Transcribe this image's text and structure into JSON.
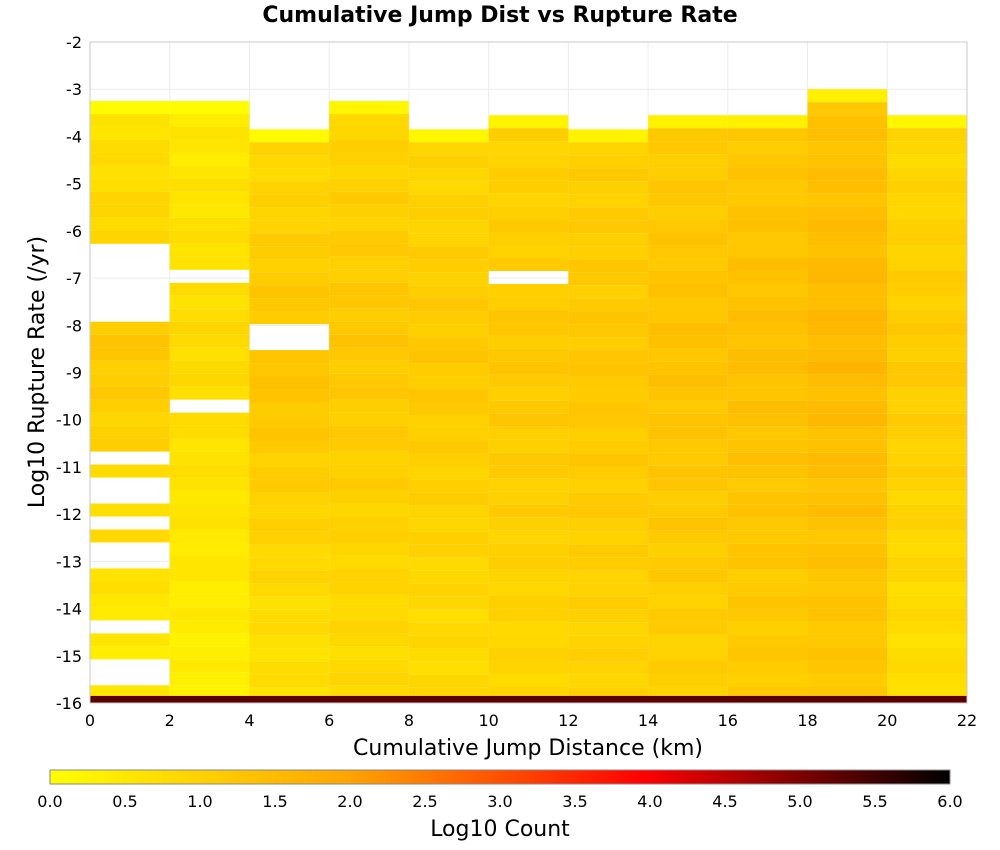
{
  "chart_data": {
    "type": "heatmap",
    "title": "Cumulative Jump Dist vs Rupture Rate",
    "xlabel": "Cumulative Jump Distance (km)",
    "ylabel": "Log10 Rupture Rate (/yr)",
    "xlim": [
      0,
      22
    ],
    "ylim": [
      -16,
      -2
    ],
    "x_ticks": [
      "0",
      "2",
      "4",
      "6",
      "8",
      "10",
      "12",
      "14",
      "16",
      "18",
      "20",
      "22"
    ],
    "y_ticks": [
      "-2",
      "-3",
      "-4",
      "-5",
      "-6",
      "-7",
      "-8",
      "-9",
      "-10",
      "-11",
      "-12",
      "-13",
      "-14",
      "-15",
      "-16"
    ],
    "x_bin_width": 2,
    "y_bin_height": 0.275,
    "grid": true,
    "colorbar": {
      "label": "Log10 Count",
      "min": 0.0,
      "max": 6.0,
      "ticks": [
        "0.0",
        "0.5",
        "1.0",
        "1.5",
        "2.0",
        "2.5",
        "3.0",
        "3.5",
        "4.0",
        "4.5",
        "5.0",
        "5.5",
        "6.0"
      ],
      "colors": [
        "#ffff00",
        "#ffa500",
        "#ff0000",
        "#000000"
      ]
    },
    "columns": [
      {
        "x_start": 0,
        "top": -3.25,
        "base": 0.95,
        "trend": 0.9,
        "floor": 0.2,
        "gaps": [
          -6.5,
          -6.75,
          -7.0,
          -7.25,
          -7.75,
          -8.0,
          -11.0,
          -11.5,
          -12.25,
          -12.75,
          -13.25,
          -14.5,
          -15.25,
          -15.5
        ]
      },
      {
        "x_start": 2,
        "top": -3.25,
        "base": 0.65,
        "trend": 0.6,
        "floor": 0.2,
        "gaps": [
          -7.0,
          -9.75
        ]
      },
      {
        "x_start": 4,
        "top": -3.85,
        "base": 1.05,
        "trend": 1.0,
        "floor": 0.4,
        "gaps": [
          -8.25
        ]
      },
      {
        "x_start": 6,
        "top": -3.25,
        "base": 1.0,
        "trend": 0.8,
        "floor": 0.6,
        "gaps": []
      },
      {
        "x_start": 8,
        "top": -3.85,
        "base": 1.0,
        "trend": 0.7,
        "floor": 0.6,
        "gaps": []
      },
      {
        "x_start": 10,
        "top": -3.55,
        "base": 1.1,
        "trend": 0.4,
        "floor": 0.8,
        "gaps": [
          -7.0
        ]
      },
      {
        "x_start": 12,
        "top": -3.85,
        "base": 1.15,
        "trend": 0.3,
        "floor": 0.9,
        "gaps": []
      },
      {
        "x_start": 14,
        "top": -3.55,
        "base": 1.3,
        "trend": 0.2,
        "floor": 1.0,
        "gaps": []
      },
      {
        "x_start": 16,
        "top": -3.55,
        "base": 1.35,
        "trend": 0.2,
        "floor": 1.1,
        "gaps": []
      },
      {
        "x_start": 18,
        "top": -3.0,
        "base": 1.5,
        "trend": 0.15,
        "floor": 1.2,
        "gaps": []
      },
      {
        "x_start": 20,
        "top": -3.55,
        "base": 1.1,
        "trend": 0.2,
        "floor": 0.7,
        "gaps": []
      }
    ],
    "bottom_row": {
      "y_start": -16.0,
      "y_end": -15.85,
      "x_start": 0,
      "x_end": 22,
      "value": 5.2
    }
  }
}
